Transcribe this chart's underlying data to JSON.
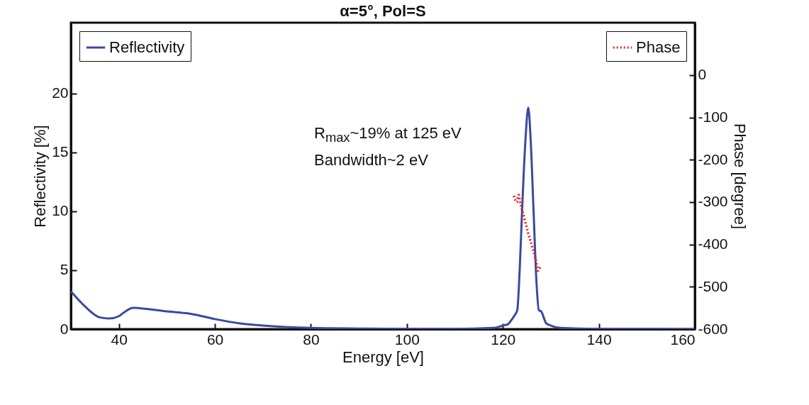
{
  "chart_data": {
    "type": "line",
    "title": "α=5°, Pol=S",
    "xlabel": "Energy [eV]",
    "ylabel": "Reflectivity [%]",
    "y2label": "Phase [degree]",
    "xlim": [
      30,
      160
    ],
    "xticks": [
      40,
      60,
      80,
      100,
      120,
      140,
      160
    ],
    "ylim": [
      0,
      26
    ],
    "yticks": [
      0,
      5,
      10,
      15,
      20
    ],
    "y2lim": [
      -600,
      124
    ],
    "y2ticks": [
      -600,
      -500,
      -400,
      -300,
      -200,
      -100,
      0
    ],
    "grid": false,
    "legend": "top left",
    "annotations": [
      "R$_{max}$~19% at 125 eV",
      "Bandwidth~2 eV"
    ],
    "series": [
      {
        "name": "Reflectivity",
        "color": "#3a4aa0",
        "line_style": "solid",
        "x": [
          30,
          33,
          36,
          38,
          40,
          41,
          43,
          46,
          50,
          55,
          60,
          65,
          70,
          80,
          90,
          100,
          110,
          118,
          120,
          121,
          122,
          122.5,
          123,
          123.5,
          124,
          124.7,
          125.3,
          125.8,
          126.4,
          127,
          127.5,
          128,
          128.5,
          129,
          130,
          132,
          140,
          150,
          160
        ],
        "values": [
          3.2,
          1.9,
          1.0,
          0.9,
          1.1,
          1.4,
          1.8,
          1.7,
          1.5,
          1.3,
          0.85,
          0.5,
          0.3,
          0.1,
          0.05,
          0.02,
          0.02,
          0.1,
          0.3,
          0.4,
          0.9,
          1.2,
          1.6,
          5,
          10,
          16,
          18.8,
          16,
          10,
          4,
          1.6,
          1.5,
          1.0,
          0.5,
          0.3,
          0.1,
          0.02,
          0.01,
          0
        ]
      },
      {
        "name": "Phase",
        "color": "#e8231f",
        "line_style": "dotted",
        "axis": "y2",
        "x": [
          122.3,
          122.9,
          123.3,
          123.6,
          124.4,
          125.2,
          126.1,
          126.9,
          127.3,
          127.8
        ],
        "values": [
          -285,
          -300,
          -283,
          -300,
          -335,
          -370,
          -405,
          -438,
          -462,
          -452
        ]
      }
    ]
  }
}
